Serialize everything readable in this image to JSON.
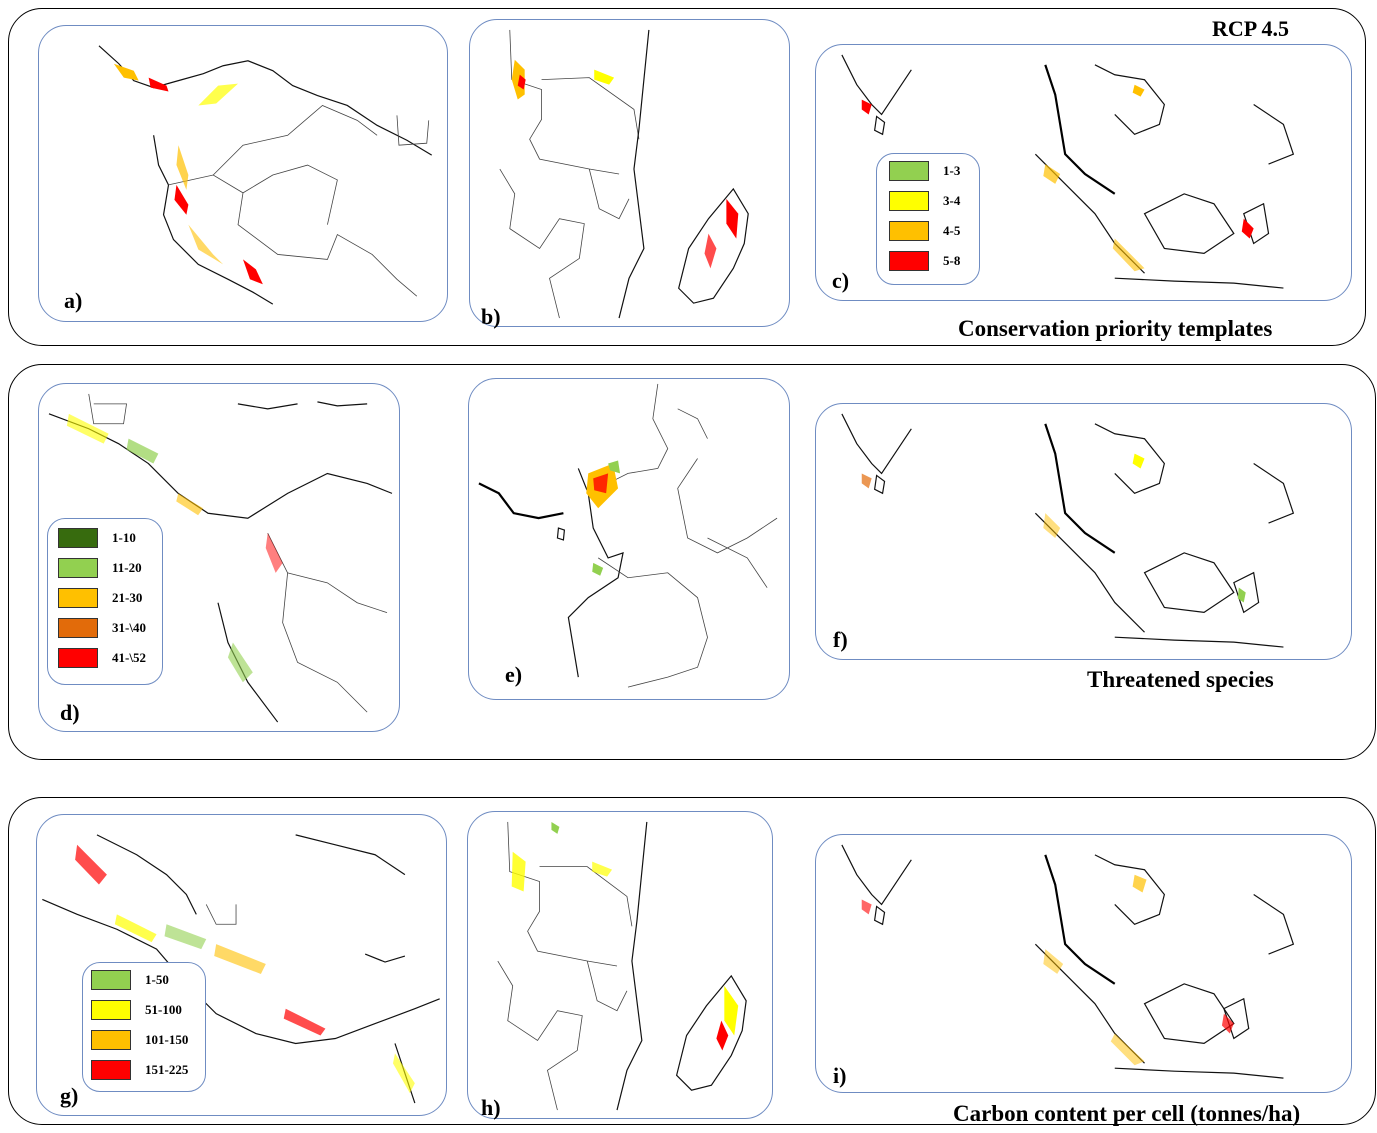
{
  "scenario": "RCP 4.5",
  "groups": [
    {
      "title": "Conservation priority templates"
    },
    {
      "title": "Threatened species"
    },
    {
      "title": "Carbon content per cell (tonnes/ha)"
    }
  ],
  "panels": {
    "a": "a)",
    "b": "b)",
    "c": "c)",
    "d": "d)",
    "e": "e)",
    "f": "f)",
    "g": "g)",
    "h": "h)",
    "i": "i)"
  },
  "legends": {
    "priority": [
      {
        "label": "1-3",
        "color": "#92d050"
      },
      {
        "label": "3-4",
        "color": "#ffff00"
      },
      {
        "label": "4-5",
        "color": "#ffc000"
      },
      {
        "label": "5-8",
        "color": "#ff0000"
      }
    ],
    "threatened": [
      {
        "label": "1-10",
        "color": "#376b0e"
      },
      {
        "label": "11-20",
        "color": "#92d050"
      },
      {
        "label": "21-30",
        "color": "#ffc000"
      },
      {
        "label": "31-\\40",
        "color": "#e26b0a"
      },
      {
        "label": "41-\\52",
        "color": "#ff0000"
      }
    ],
    "carbon": [
      {
        "label": "1-50",
        "color": "#92d050"
      },
      {
        "label": "51-100",
        "color": "#ffff00"
      },
      {
        "label": "101-150",
        "color": "#ffc000"
      },
      {
        "label": "151-225",
        "color": "#ff0000"
      }
    ]
  }
}
